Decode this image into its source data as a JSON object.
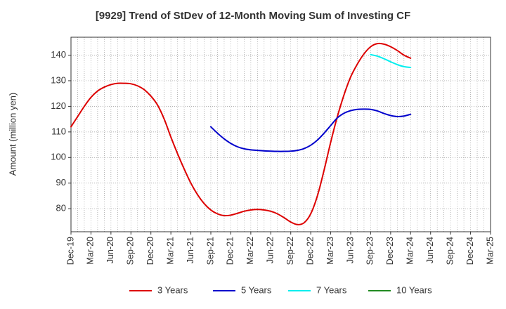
{
  "chart_data": {
    "type": "line",
    "title": "[9929]  Trend of StDev of 12-Month Moving Sum of Investing CF",
    "xlabel": "",
    "ylabel": "Amount (million yen)",
    "ylim": [
      71,
      147
    ],
    "yticks": [
      80,
      90,
      100,
      110,
      120,
      130,
      140
    ],
    "x_tick_labels": [
      "Dec-19",
      "Mar-20",
      "Jun-20",
      "Sep-20",
      "Dec-20",
      "Mar-21",
      "Jun-21",
      "Sep-21",
      "Dec-21",
      "Mar-22",
      "Jun-22",
      "Sep-22",
      "Dec-22",
      "Mar-23",
      "Jun-23",
      "Sep-23",
      "Dec-23",
      "Mar-24",
      "Jun-24",
      "Sep-24",
      "Dec-24",
      "Mar-25"
    ],
    "grid": true,
    "legend_position": "bottom",
    "series": [
      {
        "name": "3 Years",
        "color": "#dd0000",
        "x": [
          "Dec-19",
          "Jan-20",
          "Feb-20",
          "Mar-20",
          "Apr-20",
          "May-20",
          "Jun-20",
          "Jul-20",
          "Aug-20",
          "Sep-20",
          "Oct-20",
          "Nov-20",
          "Dec-20",
          "Jan-21",
          "Feb-21",
          "Mar-21",
          "Apr-21",
          "May-21",
          "Jun-21",
          "Jul-21",
          "Aug-21",
          "Sep-21",
          "Oct-21",
          "Nov-21",
          "Dec-21",
          "Jan-22",
          "Feb-22",
          "Mar-22",
          "Apr-22",
          "May-22",
          "Jun-22",
          "Jul-22",
          "Aug-22",
          "Sep-22",
          "Oct-22",
          "Nov-22",
          "Dec-22",
          "Jan-23",
          "Feb-23",
          "Mar-23",
          "Apr-23",
          "May-23",
          "Jun-23",
          "Jul-23",
          "Aug-23",
          "Sep-23",
          "Oct-23",
          "Nov-23",
          "Dec-23",
          "Jan-24",
          "Feb-24",
          "Mar-24"
        ],
        "values": [
          112,
          116,
          120,
          123.5,
          126,
          127.5,
          128.5,
          129,
          129,
          128.8,
          128,
          126.5,
          124,
          120.5,
          115,
          108,
          101.5,
          95.5,
          90,
          85.5,
          82,
          79.5,
          78,
          77.3,
          77.5,
          78.2,
          79,
          79.5,
          79.7,
          79.5,
          79,
          78,
          76.5,
          74.8,
          73.8,
          74.5,
          78,
          85,
          95,
          106,
          116,
          124.5,
          131.5,
          136.5,
          140.5,
          143.3,
          144.5,
          144.3,
          143.3,
          141.8,
          140,
          138.8
        ]
      },
      {
        "name": "5 Years",
        "color": "#0000cc",
        "x": [
          "Sep-21",
          "Oct-21",
          "Nov-21",
          "Dec-21",
          "Jan-22",
          "Feb-22",
          "Mar-22",
          "Apr-22",
          "May-22",
          "Jun-22",
          "Jul-22",
          "Aug-22",
          "Sep-22",
          "Oct-22",
          "Nov-22",
          "Dec-22",
          "Jan-23",
          "Feb-23",
          "Mar-23",
          "Apr-23",
          "May-23",
          "Jun-23",
          "Jul-23",
          "Aug-23",
          "Sep-23",
          "Oct-23",
          "Nov-23",
          "Dec-23",
          "Jan-24",
          "Feb-24",
          "Mar-24"
        ],
        "values": [
          112,
          109.5,
          107.3,
          105.5,
          104.2,
          103.4,
          103,
          102.8,
          102.6,
          102.5,
          102.4,
          102.4,
          102.5,
          102.8,
          103.5,
          104.8,
          106.8,
          109.5,
          112.5,
          115.5,
          117.3,
          118.3,
          118.8,
          118.9,
          118.8,
          118.2,
          117.2,
          116.4,
          116,
          116.2,
          116.9
        ]
      },
      {
        "name": "7 Years",
        "color": "#00eeee",
        "x": [
          "Sep-23",
          "Oct-23",
          "Nov-23",
          "Dec-23",
          "Jan-24",
          "Feb-24",
          "Mar-24"
        ],
        "values": [
          140.2,
          139.6,
          138.6,
          137.4,
          136.3,
          135.5,
          135.2
        ]
      },
      {
        "name": "10 Years",
        "color": "#228b22",
        "x": [],
        "values": []
      }
    ]
  }
}
